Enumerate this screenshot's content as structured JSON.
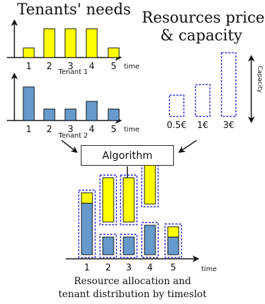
{
  "headings": {
    "tenants": "Tenants' needs",
    "resources_line1": "Resources price",
    "resources_line2": "& capacity"
  },
  "tenant_charts": [
    {
      "name": "Tenant 1",
      "color": "#ffff00",
      "categories": [
        "1",
        "2",
        "3",
        "4",
        "5"
      ],
      "values": [
        1,
        3,
        3,
        3,
        1
      ],
      "axis_label": "time"
    },
    {
      "name": "Tenant 2",
      "color": "#6699cc",
      "categories": [
        "1",
        "2",
        "3",
        "4",
        "5"
      ],
      "values": [
        3.5,
        1.2,
        1.2,
        2.0,
        1.2
      ],
      "axis_label": "time"
    }
  ],
  "resources": {
    "capacity_label": "Capacity",
    "items": [
      {
        "price": "0.5€",
        "capacity": 1
      },
      {
        "price": "1€",
        "capacity": 1.5
      },
      {
        "price": "3€",
        "capacity": 3
      }
    ]
  },
  "algorithm_label": "Algorithm",
  "allocation": {
    "categories": [
      "1",
      "2",
      "3",
      "4",
      "5"
    ],
    "axis_label": "time",
    "tenant1_color": "#ffff00",
    "tenant2_color": "#6699cc",
    "resource_border_color": "#2a2adb"
  },
  "caption": {
    "line1": "Resource allocation and",
    "line2": "tenant distribution by timeslot"
  }
}
